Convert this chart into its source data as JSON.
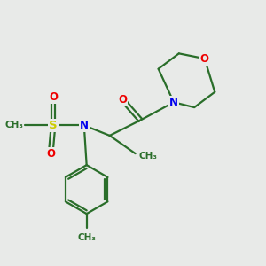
{
  "bg_color": "#e8eae8",
  "bond_color": "#2a6e2a",
  "atom_colors": {
    "N": "#0000ee",
    "O": "#ee0000",
    "S": "#cccc00",
    "C": "#2a6e2a"
  },
  "figsize": [
    3.0,
    3.0
  ],
  "dpi": 100,
  "xlim": [
    0,
    10
  ],
  "ylim": [
    0,
    10
  ]
}
